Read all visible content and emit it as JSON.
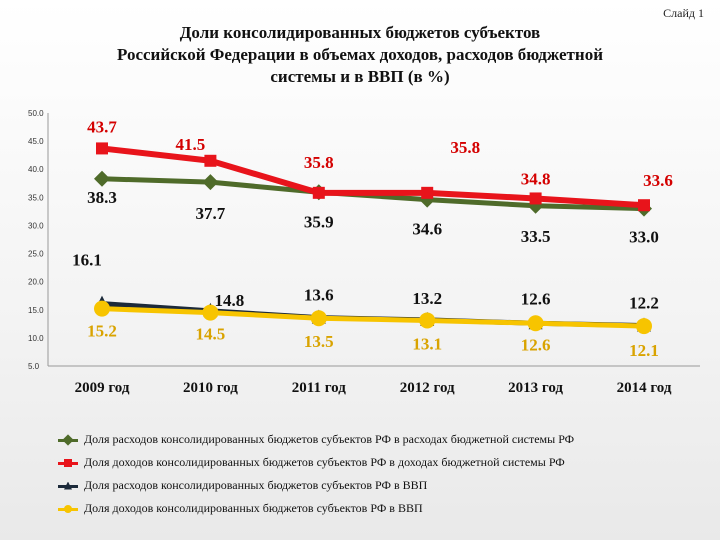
{
  "slide_label": "Слайд 1",
  "title_lines": [
    "Доли консолидированных бюджетов субъектов",
    "Российской Федерации в объемах доходов, расходов бюджетной",
    "системы и в ВВП (в %)"
  ],
  "chart_data": {
    "type": "line",
    "categories": [
      "2009 год",
      "2010 год",
      "2011 год",
      "2012 год",
      "2013 год",
      "2014 год"
    ],
    "ylim": [
      5,
      50
    ],
    "y_ticks": [
      "5.0",
      "10.0",
      "15.0",
      "20.0",
      "25.0",
      "30.0",
      "35.0",
      "40.0",
      "45.0",
      "50.0"
    ],
    "grid": false,
    "legend_position": "bottom",
    "series": [
      {
        "name": "Доля расходов консолидированных бюджетов субъектов РФ в расходах бюджетной системы РФ",
        "values": [
          38.3,
          37.7,
          35.9,
          34.6,
          33.5,
          33.0
        ],
        "labels": [
          "38.3",
          "37.7",
          "35.9",
          "34.6",
          "33.5",
          "33.0"
        ],
        "color": "#4f6b2a",
        "marker": "diamond"
      },
      {
        "name": "Доля доходов консолидированных бюджетов субъектов РФ в доходах бюджетной системы РФ",
        "values": [
          43.7,
          41.5,
          35.8,
          35.8,
          34.8,
          33.6
        ],
        "labels": [
          "43.7",
          "41.5",
          "35.8",
          "35.8",
          "34.8",
          "33.6"
        ],
        "color": "#e8141b",
        "marker": "square"
      },
      {
        "name": "Доля расходов консолидированных бюджетов субъектов РФ в ВВП",
        "values": [
          16.1,
          14.8,
          13.6,
          13.2,
          12.6,
          12.2
        ],
        "labels": [
          "16.1",
          "14.8",
          "13.6",
          "13.2",
          "12.6",
          "12.2"
        ],
        "color": "#1c2a3a",
        "marker": "triangle"
      },
      {
        "name": "Доля доходов консолидированных бюджетов субъектов РФ в ВВП",
        "values": [
          15.2,
          14.5,
          13.5,
          13.1,
          12.6,
          12.1
        ],
        "labels": [
          "15.2",
          "14.5",
          "13.5",
          "13.1",
          "12.6",
          "12.1"
        ],
        "color": "#f7c400",
        "marker": "circle"
      }
    ]
  }
}
